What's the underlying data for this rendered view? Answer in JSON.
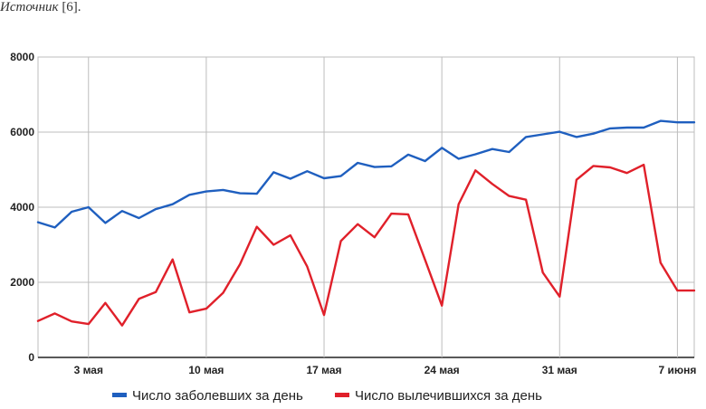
{
  "source_note": {
    "label": "Источник",
    "ref": "[6]."
  },
  "chart_data": {
    "type": "line",
    "ylim": [
      0,
      8000
    ],
    "yticks": [
      0,
      2000,
      4000,
      6000,
      8000
    ],
    "grid": true,
    "legend_position": "bottom",
    "x_start": "2020-04-30",
    "x_end": "2020-06-08",
    "xticks": [
      {
        "date": "2020-05-03",
        "label": "3 мая"
      },
      {
        "date": "2020-05-10",
        "label": "10 мая"
      },
      {
        "date": "2020-05-17",
        "label": "17 мая"
      },
      {
        "date": "2020-05-24",
        "label": "24 мая"
      },
      {
        "date": "2020-05-31",
        "label": "31 мая"
      },
      {
        "date": "2020-06-07",
        "label": "7 июня"
      }
    ],
    "x": [
      "2020-04-30",
      "2020-05-01",
      "2020-05-02",
      "2020-05-03",
      "2020-05-04",
      "2020-05-05",
      "2020-05-06",
      "2020-05-07",
      "2020-05-08",
      "2020-05-09",
      "2020-05-10",
      "2020-05-11",
      "2020-05-12",
      "2020-05-13",
      "2020-05-14",
      "2020-05-15",
      "2020-05-16",
      "2020-05-17",
      "2020-05-18",
      "2020-05-19",
      "2020-05-20",
      "2020-05-21",
      "2020-05-22",
      "2020-05-23",
      "2020-05-24",
      "2020-05-25",
      "2020-05-26",
      "2020-05-27",
      "2020-05-28",
      "2020-05-29",
      "2020-05-30",
      "2020-05-31",
      "2020-06-01",
      "2020-06-02",
      "2020-06-03",
      "2020-06-04",
      "2020-06-05",
      "2020-06-06",
      "2020-06-07",
      "2020-06-08"
    ],
    "series": [
      {
        "name": "Число заболевших за день",
        "color": "#1f5fbf",
        "values": [
          3600,
          3460,
          3880,
          4000,
          3580,
          3900,
          3710,
          3950,
          4080,
          4330,
          4420,
          4460,
          4370,
          4360,
          4930,
          4760,
          4960,
          4770,
          4830,
          5180,
          5070,
          5090,
          5400,
          5230,
          5580,
          5290,
          5410,
          5550,
          5470,
          5870,
          5940,
          6010,
          5870,
          5960,
          6100,
          6120,
          6120,
          6300,
          6260,
          6260
        ]
      },
      {
        "name": "Число вылечившихся за день",
        "color": "#e0202a",
        "values": [
          970,
          1170,
          960,
          890,
          1450,
          850,
          1560,
          1740,
          2610,
          1200,
          1300,
          1720,
          2480,
          3480,
          3000,
          3250,
          2420,
          1130,
          3100,
          3550,
          3200,
          3830,
          3810,
          2600,
          1380,
          4080,
          4980,
          4620,
          4300,
          4200,
          2260,
          1620,
          4730,
          5100,
          5060,
          4910,
          5130,
          2520,
          1780,
          1780
        ]
      }
    ]
  }
}
